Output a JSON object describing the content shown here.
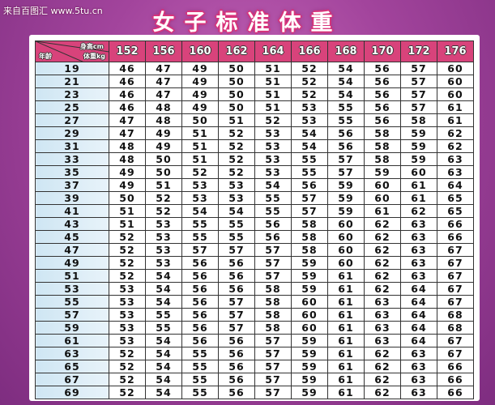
{
  "watermark": "来自百图汇 www.5tu.cn",
  "title": "女子标准体重",
  "corner": {
    "height_label": "身高cm",
    "weight_label": "体重kg",
    "age_label": "年龄"
  },
  "colors": {
    "header": "#d8437b",
    "age_column": "#cfe6f3",
    "background": "#a2449c"
  },
  "heights": [
    "152",
    "156",
    "160",
    "162",
    "164",
    "166",
    "168",
    "170",
    "172",
    "176"
  ],
  "rows": [
    {
      "age": "19",
      "w": [
        "46",
        "47",
        "49",
        "50",
        "51",
        "52",
        "54",
        "56",
        "57",
        "60"
      ]
    },
    {
      "age": "21",
      "w": [
        "46",
        "47",
        "49",
        "50",
        "51",
        "52",
        "54",
        "56",
        "57",
        "60"
      ]
    },
    {
      "age": "23",
      "w": [
        "46",
        "47",
        "49",
        "50",
        "51",
        "52",
        "54",
        "56",
        "57",
        "60"
      ]
    },
    {
      "age": "25",
      "w": [
        "46",
        "48",
        "49",
        "50",
        "51",
        "53",
        "55",
        "56",
        "57",
        "61"
      ]
    },
    {
      "age": "27",
      "w": [
        "47",
        "48",
        "50",
        "51",
        "52",
        "53",
        "55",
        "56",
        "58",
        "61"
      ]
    },
    {
      "age": "29",
      "w": [
        "47",
        "49",
        "51",
        "52",
        "53",
        "54",
        "56",
        "58",
        "59",
        "62"
      ]
    },
    {
      "age": "31",
      "w": [
        "48",
        "49",
        "51",
        "52",
        "53",
        "54",
        "56",
        "58",
        "59",
        "62"
      ]
    },
    {
      "age": "33",
      "w": [
        "48",
        "50",
        "51",
        "52",
        "53",
        "55",
        "57",
        "58",
        "59",
        "63"
      ]
    },
    {
      "age": "35",
      "w": [
        "49",
        "50",
        "52",
        "52",
        "53",
        "55",
        "57",
        "59",
        "60",
        "63"
      ]
    },
    {
      "age": "37",
      "w": [
        "49",
        "51",
        "53",
        "53",
        "54",
        "56",
        "59",
        "60",
        "61",
        "64"
      ]
    },
    {
      "age": "39",
      "w": [
        "50",
        "52",
        "53",
        "53",
        "55",
        "57",
        "59",
        "60",
        "61",
        "65"
      ]
    },
    {
      "age": "41",
      "w": [
        "51",
        "52",
        "54",
        "54",
        "55",
        "57",
        "59",
        "61",
        "62",
        "65"
      ]
    },
    {
      "age": "43",
      "w": [
        "51",
        "53",
        "55",
        "55",
        "56",
        "58",
        "60",
        "62",
        "63",
        "66"
      ]
    },
    {
      "age": "45",
      "w": [
        "52",
        "53",
        "55",
        "55",
        "56",
        "58",
        "60",
        "62",
        "63",
        "66"
      ]
    },
    {
      "age": "47",
      "w": [
        "52",
        "53",
        "57",
        "57",
        "57",
        "58",
        "60",
        "62",
        "63",
        "67"
      ]
    },
    {
      "age": "49",
      "w": [
        "52",
        "53",
        "56",
        "56",
        "57",
        "59",
        "60",
        "62",
        "63",
        "67"
      ]
    },
    {
      "age": "51",
      "w": [
        "52",
        "54",
        "56",
        "56",
        "57",
        "59",
        "61",
        "62",
        "63",
        "67"
      ]
    },
    {
      "age": "53",
      "w": [
        "53",
        "54",
        "56",
        "56",
        "58",
        "59",
        "61",
        "62",
        "64",
        "67"
      ]
    },
    {
      "age": "55",
      "w": [
        "53",
        "54",
        "56",
        "57",
        "58",
        "60",
        "61",
        "63",
        "64",
        "67"
      ]
    },
    {
      "age": "57",
      "w": [
        "53",
        "55",
        "56",
        "57",
        "58",
        "60",
        "61",
        "63",
        "64",
        "68"
      ]
    },
    {
      "age": "59",
      "w": [
        "53",
        "55",
        "56",
        "57",
        "58",
        "60",
        "61",
        "63",
        "64",
        "68"
      ]
    },
    {
      "age": "61",
      "w": [
        "53",
        "54",
        "56",
        "56",
        "57",
        "59",
        "61",
        "63",
        "64",
        "67"
      ]
    },
    {
      "age": "63",
      "w": [
        "52",
        "54",
        "55",
        "56",
        "57",
        "59",
        "61",
        "62",
        "63",
        "67"
      ]
    },
    {
      "age": "65",
      "w": [
        "52",
        "54",
        "55",
        "56",
        "57",
        "59",
        "61",
        "62",
        "63",
        "66"
      ]
    },
    {
      "age": "67",
      "w": [
        "52",
        "54",
        "55",
        "56",
        "57",
        "59",
        "61",
        "62",
        "63",
        "66"
      ]
    },
    {
      "age": "69",
      "w": [
        "52",
        "54",
        "55",
        "56",
        "57",
        "59",
        "61",
        "62",
        "63",
        "66"
      ]
    }
  ]
}
